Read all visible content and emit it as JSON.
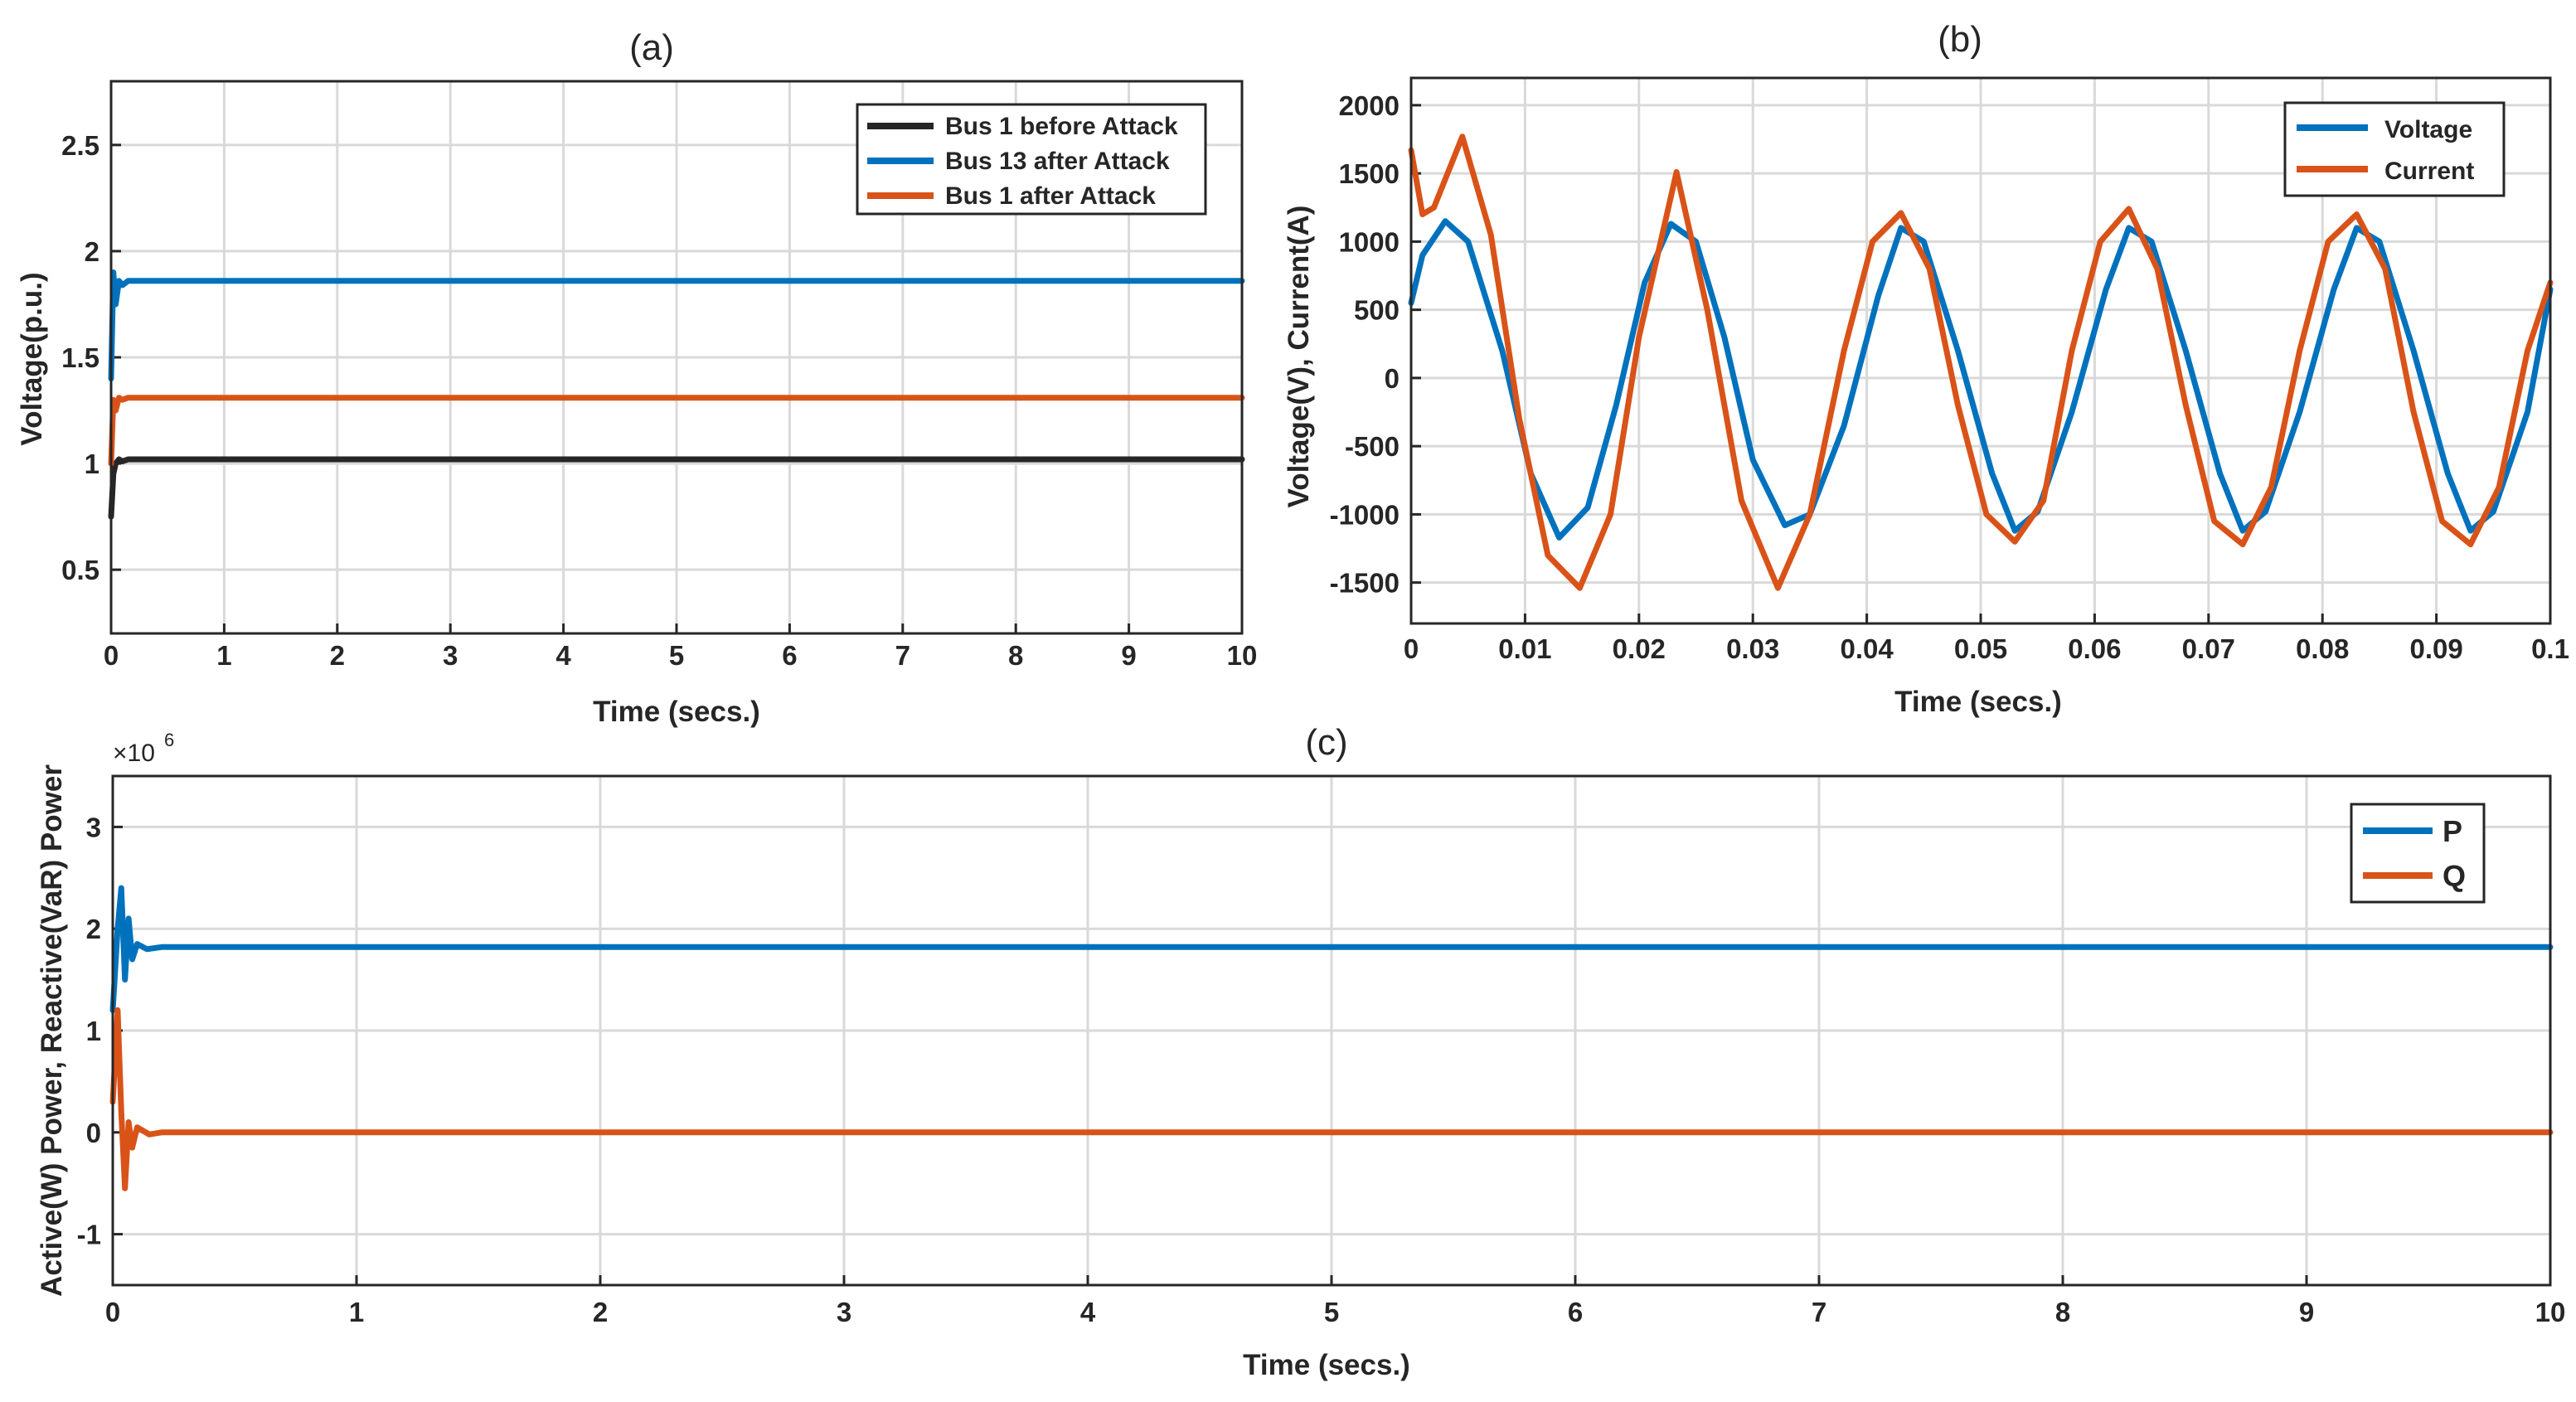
{
  "chart_data": [
    {
      "id": "a",
      "type": "line",
      "title": "(a)",
      "xlabel": "Time (secs.)",
      "ylabel": "Voltage(p.u.)",
      "xlim": [
        0,
        10
      ],
      "ylim": [
        0.2,
        2.8
      ],
      "xticks": [
        0,
        1,
        2,
        3,
        4,
        5,
        6,
        7,
        8,
        9,
        10
      ],
      "yticks": [
        0.5,
        1,
        1.5,
        2,
        2.5
      ],
      "grid": true,
      "legend_position": "top-right",
      "series": [
        {
          "name": "Bus 1 before Attack",
          "color": "#262626",
          "x": [
            0,
            0.02,
            0.04,
            0.07,
            0.1,
            0.15,
            0.3,
            1,
            10
          ],
          "y": [
            0.75,
            0.95,
            1.0,
            1.02,
            1.01,
            1.02,
            1.02,
            1.02,
            1.02
          ]
        },
        {
          "name": "Bus 13 after Attack",
          "color": "#0072BD",
          "x": [
            0,
            0.02,
            0.04,
            0.07,
            0.1,
            0.15,
            0.3,
            1,
            10
          ],
          "y": [
            1.4,
            1.9,
            1.75,
            1.86,
            1.84,
            1.86,
            1.86,
            1.86,
            1.86
          ]
        },
        {
          "name": "Bus 1 after Attack",
          "color": "#D95319",
          "x": [
            0,
            0.02,
            0.04,
            0.07,
            0.1,
            0.15,
            0.3,
            1,
            10
          ],
          "y": [
            1.0,
            1.3,
            1.25,
            1.31,
            1.3,
            1.31,
            1.31,
            1.31,
            1.31
          ]
        }
      ]
    },
    {
      "id": "b",
      "type": "line",
      "title": "(b)",
      "xlabel": "Time (secs.)",
      "ylabel": "Voltage(V), Current(A)",
      "xlim": [
        0,
        0.1
      ],
      "ylim": [
        -1800,
        2200
      ],
      "xticks": [
        0,
        0.01,
        0.02,
        0.03,
        0.04,
        0.05,
        0.06,
        0.07,
        0.08,
        0.09,
        0.1
      ],
      "yticks": [
        -1500,
        -1000,
        -500,
        0,
        500,
        1000,
        1500,
        2000
      ],
      "grid": true,
      "legend_position": "top-right",
      "series": [
        {
          "name": "Voltage",
          "color": "#0072BD",
          "x": [
            0,
            0.001,
            0.003,
            0.005,
            0.008,
            0.0105,
            0.013,
            0.0155,
            0.018,
            0.0205,
            0.0228,
            0.025,
            0.0275,
            0.03,
            0.0328,
            0.035,
            0.038,
            0.041,
            0.043,
            0.045,
            0.048,
            0.051,
            0.053,
            0.055,
            0.058,
            0.061,
            0.063,
            0.065,
            0.068,
            0.071,
            0.073,
            0.075,
            0.078,
            0.081,
            0.083,
            0.085,
            0.088,
            0.091,
            0.093,
            0.095,
            0.098,
            0.1
          ],
          "y": [
            550,
            900,
            1150,
            1000,
            200,
            -700,
            -1170,
            -950,
            -200,
            700,
            1130,
            1000,
            300,
            -600,
            -1080,
            -1000,
            -350,
            600,
            1100,
            1000,
            200,
            -700,
            -1120,
            -980,
            -250,
            650,
            1100,
            1000,
            200,
            -700,
            -1120,
            -980,
            -250,
            650,
            1100,
            1000,
            200,
            -700,
            -1120,
            -980,
            -250,
            650
          ]
        },
        {
          "name": "Current",
          "color": "#D95319",
          "x": [
            0,
            0.001,
            0.002,
            0.0045,
            0.007,
            0.0095,
            0.012,
            0.0148,
            0.0175,
            0.02,
            0.0233,
            0.026,
            0.029,
            0.0322,
            0.035,
            0.038,
            0.0405,
            0.043,
            0.0455,
            0.048,
            0.0505,
            0.053,
            0.0555,
            0.058,
            0.0605,
            0.063,
            0.0655,
            0.068,
            0.0705,
            0.073,
            0.0755,
            0.078,
            0.0805,
            0.083,
            0.0855,
            0.088,
            0.0905,
            0.093,
            0.0955,
            0.098,
            0.1
          ],
          "y": [
            1670,
            1200,
            1250,
            1770,
            1050,
            -300,
            -1300,
            -1540,
            -1000,
            300,
            1510,
            500,
            -900,
            -1540,
            -1000,
            200,
            1000,
            1210,
            800,
            -200,
            -1000,
            -1200,
            -900,
            200,
            1000,
            1240,
            800,
            -200,
            -1050,
            -1220,
            -800,
            200,
            1000,
            1200,
            800,
            -250,
            -1050,
            -1220,
            -800,
            200,
            700
          ]
        }
      ]
    },
    {
      "id": "c",
      "type": "line",
      "title": "(c)",
      "xlabel": "Time (secs.)",
      "ylabel": "Active(W) Power, Reactive(VaR) Power",
      "exponent_label": "×10",
      "exponent_power": "6",
      "xlim": [
        0,
        10
      ],
      "ylim": [
        -1.5,
        3.5
      ],
      "xticks": [
        0,
        1,
        2,
        3,
        4,
        5,
        6,
        7,
        8,
        9,
        10
      ],
      "yticks": [
        -1,
        0,
        1,
        2,
        3
      ],
      "grid": true,
      "legend_position": "top-right",
      "series": [
        {
          "name": "P",
          "color": "#0072BD",
          "x": [
            0,
            0.02,
            0.035,
            0.05,
            0.065,
            0.08,
            0.1,
            0.14,
            0.2,
            10
          ],
          "y": [
            1.2,
            2.0,
            2.4,
            1.5,
            2.1,
            1.7,
            1.85,
            1.8,
            1.82,
            1.82
          ]
        },
        {
          "name": "Q",
          "color": "#D95319",
          "x": [
            0,
            0.02,
            0.035,
            0.05,
            0.065,
            0.08,
            0.1,
            0.15,
            0.2,
            10
          ],
          "y": [
            0.3,
            1.2,
            0.2,
            -0.55,
            0.1,
            -0.15,
            0.05,
            -0.02,
            0.0,
            0.0
          ]
        }
      ]
    }
  ]
}
